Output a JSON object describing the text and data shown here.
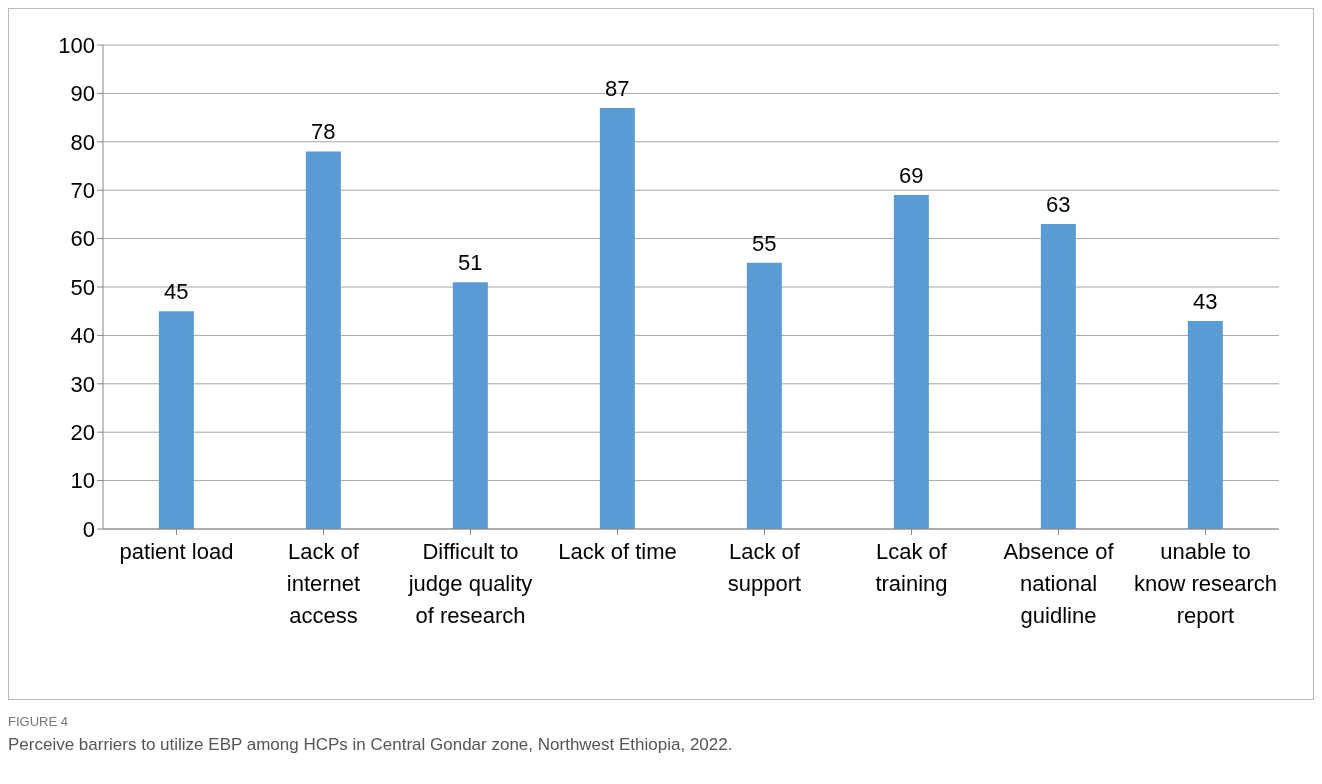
{
  "chart_data": {
    "type": "bar",
    "categories": [
      "patient load",
      "Lack of internet access",
      "Difficult to judge quality of research",
      "Lack of time",
      "Lack of support",
      "Lcak of training",
      "Absence of national guidline",
      "unable to know research report"
    ],
    "values": [
      45,
      78,
      51,
      87,
      55,
      69,
      63,
      43
    ],
    "color": "#5b9bd5",
    "ylim": [
      0,
      100
    ],
    "yticks": [
      0,
      10,
      20,
      30,
      40,
      50,
      60,
      70,
      80,
      90,
      100
    ],
    "grid": "y",
    "data_labels": true,
    "annotations": [
      "FIGURE 4",
      "Perceive barriers to utilize EBP among HCPs in Central Gondar zone, Northwest Ethiopia, 2022."
    ]
  }
}
